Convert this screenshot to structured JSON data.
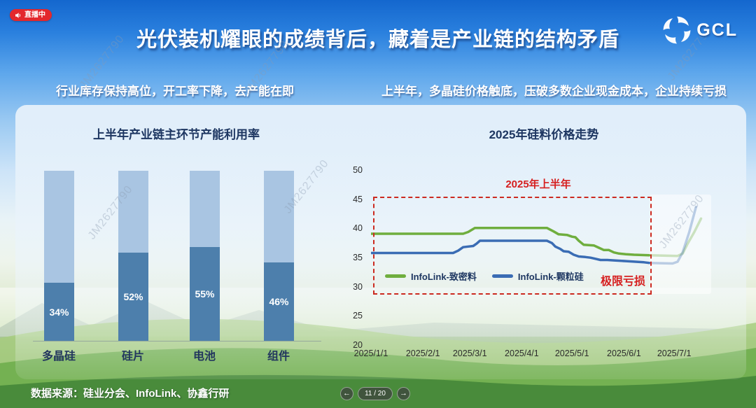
{
  "live_badge": {
    "label": "直播中"
  },
  "header": {
    "title": "光伏装机耀眼的成绩背后，藏着是产业链的结构矛盾"
  },
  "logo": {
    "text": "GCL"
  },
  "subtitles": {
    "left": "行业库存保持高位，开工率下降，去产能在即",
    "right": "上半年，多晶硅价格触底，压破多数企业现金成本，企业持续亏损"
  },
  "watermark": {
    "text": "JM2627790"
  },
  "colors": {
    "bar_dark": "#4d7fac",
    "bar_light": "#a9c5e2",
    "green_line": "#6fae3e",
    "blue_line": "#3a6cb4",
    "red_accent": "#d61f1f",
    "navy_text": "#1d3661",
    "badge_red": "#e3282d"
  },
  "chart_data": [
    {
      "type": "bar",
      "title": "上半年产业链主环节产能利用率",
      "categories": [
        "多晶硅",
        "硅片",
        "电池",
        "组件"
      ],
      "values": [
        34,
        52,
        55,
        46
      ],
      "value_labels": [
        "34%",
        "52%",
        "55%",
        "46%"
      ],
      "ylim": [
        0,
        100
      ],
      "style": "stacked: dark segment = utilization %, light segment = remainder to 100%",
      "legend_position": "none",
      "grid": false
    },
    {
      "type": "line",
      "title": "2025年硅料价格走势",
      "ylim": [
        20,
        50
      ],
      "yticks": [
        50,
        45,
        40,
        35,
        30,
        25,
        20
      ],
      "xticks": [
        "2025/1/1",
        "2025/2/1",
        "2025/3/1",
        "2025/4/1",
        "2025/5/1",
        "2025/6/1",
        "2025/7/1"
      ],
      "xtick_days": [
        0,
        31,
        59,
        90,
        120,
        151,
        181
      ],
      "grid": false,
      "legend_position": "inside-bottom-left",
      "annotations": {
        "box_label": "2025年上半年",
        "loss_label": "极限亏损"
      },
      "series": [
        {
          "name": "InfoLink-致密料",
          "color": "#6fae3e",
          "solid": [
            [
              0,
              39.2
            ],
            [
              55,
              39.2
            ],
            [
              58,
              39.5
            ],
            [
              62,
              40.2
            ],
            [
              105,
              40.2
            ],
            [
              109,
              39.6
            ],
            [
              112,
              39.1
            ],
            [
              117,
              39.0
            ],
            [
              120,
              38.7
            ],
            [
              122,
              38.6
            ],
            [
              124,
              38.0
            ],
            [
              127,
              37.3
            ],
            [
              133,
              37.2
            ],
            [
              136,
              36.8
            ],
            [
              139,
              36.4
            ],
            [
              142,
              36.4
            ],
            [
              145,
              36.0
            ],
            [
              148,
              35.8
            ],
            [
              152,
              35.7
            ],
            [
              157,
              35.6
            ],
            [
              166,
              35.5
            ]
          ],
          "faded": [
            [
              166,
              35.5
            ],
            [
              183,
              35.4
            ],
            [
              186,
              35.8
            ],
            [
              189,
              37.5
            ],
            [
              193,
              39.5
            ],
            [
              197,
              41.8
            ]
          ]
        },
        {
          "name": "InfoLink-颗粒硅",
          "color": "#3a6cb4",
          "solid": [
            [
              0,
              35.9
            ],
            [
              49,
              35.9
            ],
            [
              52,
              36.3
            ],
            [
              55,
              36.9
            ],
            [
              58,
              37.0
            ],
            [
              61,
              37.1
            ],
            [
              63,
              37.5
            ],
            [
              65,
              38.0
            ],
            [
              105,
              38.0
            ],
            [
              108,
              37.6
            ],
            [
              110,
              37.0
            ],
            [
              113,
              36.6
            ],
            [
              115,
              36.2
            ],
            [
              118,
              36.1
            ],
            [
              121,
              35.6
            ],
            [
              124,
              35.3
            ],
            [
              128,
              35.2
            ],
            [
              131,
              35.1
            ],
            [
              134,
              34.9
            ],
            [
              137,
              34.7
            ],
            [
              141,
              34.7
            ],
            [
              146,
              34.6
            ],
            [
              153,
              34.5
            ],
            [
              158,
              34.4
            ],
            [
              163,
              34.3
            ],
            [
              166,
              34.2
            ]
          ],
          "faded": [
            [
              166,
              34.2
            ],
            [
              180,
              34.1
            ],
            [
              183,
              34.4
            ],
            [
              186,
              36.0
            ],
            [
              190,
              39.5
            ],
            [
              194,
              43.8
            ]
          ]
        }
      ]
    }
  ],
  "footer": {
    "source": "数据来源：硅业分会、InfoLink、协鑫行研",
    "pager": {
      "page": "11 / 20",
      "prev_icon": "←",
      "next_icon": "→"
    }
  }
}
